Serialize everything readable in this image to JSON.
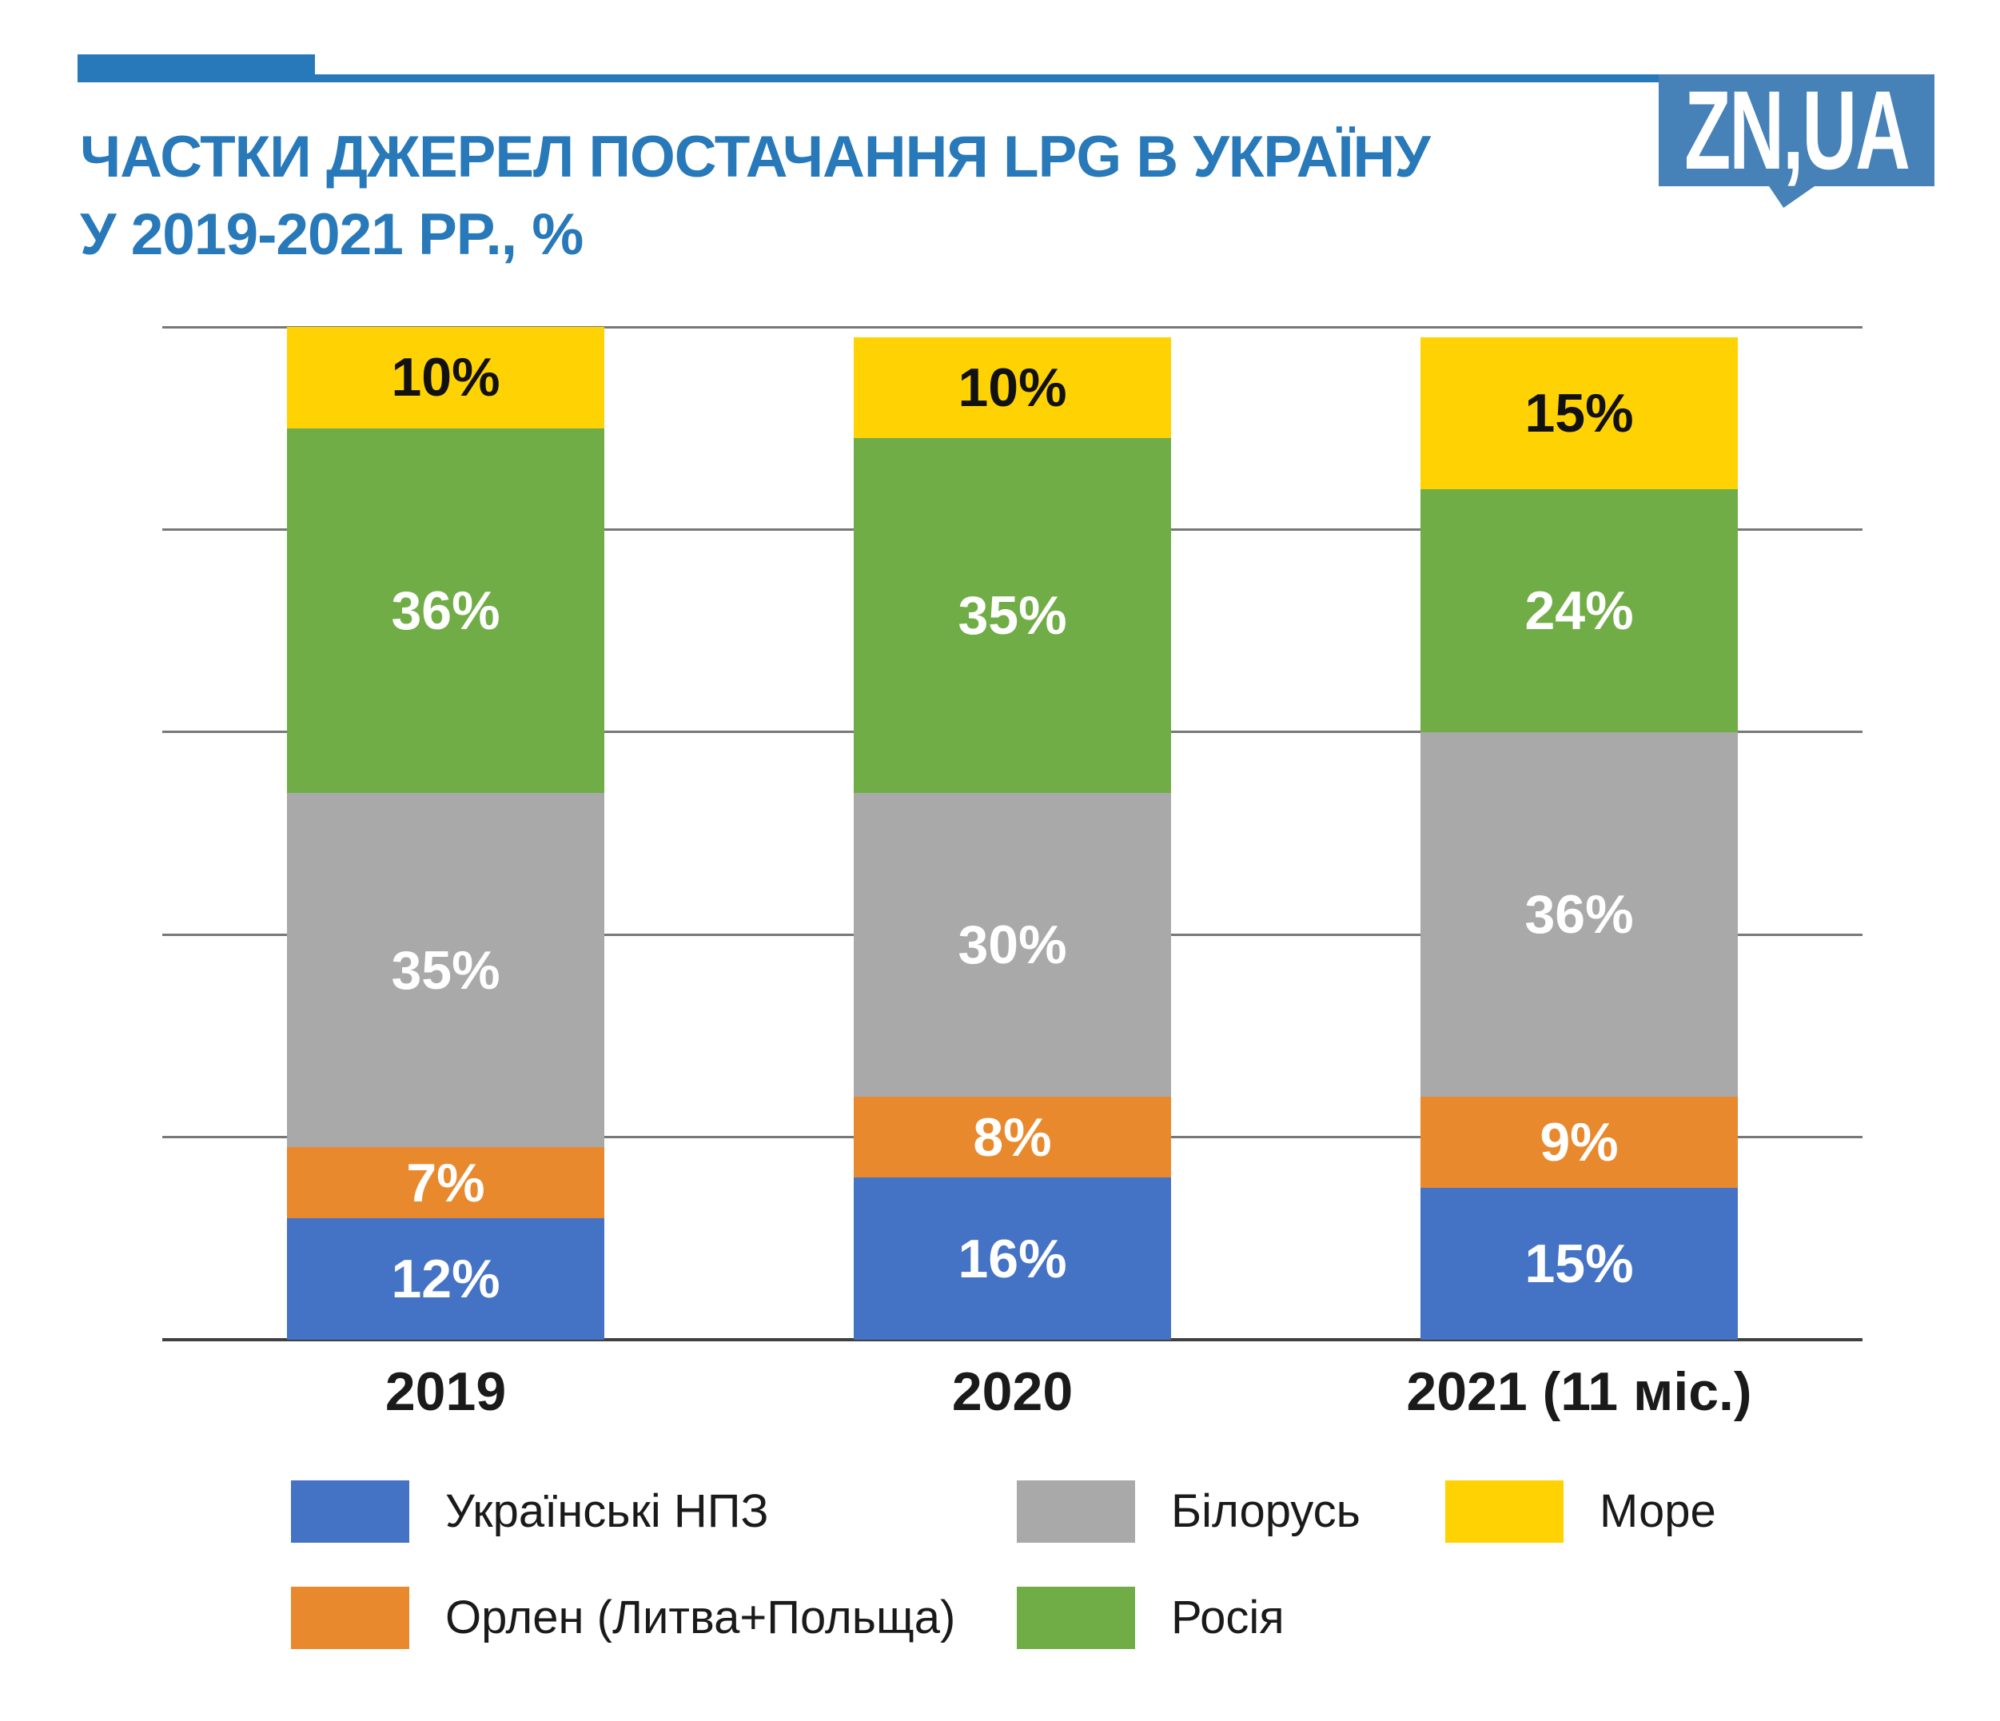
{
  "page": {
    "background": "#ffffff"
  },
  "header": {
    "title_line1": "ЧАСТКИ ДЖЕРЕЛ ПОСТАЧАННЯ LPG В УКРАЇНУ",
    "title_line2": "У 2019-2021 РР., %",
    "title_color": "#2879b9",
    "accent_color": "#2879b9",
    "logo": {
      "text": "ZN,UA",
      "bg_color": "#4681b8",
      "text_color": "#ffffff"
    }
  },
  "chart_data": {
    "type": "bar",
    "stacked": true,
    "title": "Частки джерел постачання LPG в Україну у 2019-2021 рр., %",
    "categories": [
      "2019",
      "2020",
      "2021 (11 міс.)"
    ],
    "series": [
      {
        "name": "Українські НПЗ",
        "color": "#4472c4",
        "label_color": "#ffffff",
        "values": [
          12,
          16,
          15
        ]
      },
      {
        "name": "Орлен (Литва+Польща)",
        "color": "#e9892d",
        "label_color": "#ffffff",
        "values": [
          7,
          8,
          9
        ]
      },
      {
        "name": "Білорусь",
        "color": "#a9a9a9",
        "label_color": "#ffffff",
        "values": [
          35,
          30,
          36
        ]
      },
      {
        "name": "Росія",
        "color": "#70ad47",
        "label_color": "#ffffff",
        "values": [
          36,
          35,
          24
        ]
      },
      {
        "name": "Море",
        "color": "#ffd204",
        "label_color": "#111111",
        "values": [
          10,
          10,
          15
        ]
      }
    ],
    "value_suffix": "%",
    "ylim": [
      0,
      100
    ],
    "gridline_step": 20,
    "grid": true,
    "gridline_color": "#787878",
    "axis_color": "#404040",
    "legend_position": "bottom",
    "legend_rows": [
      [
        0,
        2,
        4
      ],
      [
        1,
        3
      ]
    ]
  }
}
